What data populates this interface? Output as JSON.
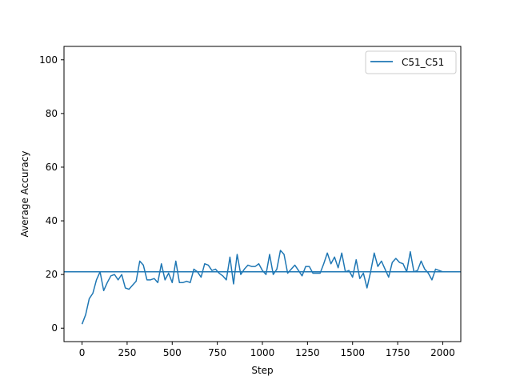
{
  "colors": {
    "series": "#1f77b4",
    "axis": "#000000",
    "background": "#ffffff"
  },
  "chart_data": {
    "type": "line",
    "title": "",
    "xlabel": "Step",
    "ylabel": "Average Accuracy",
    "xlim": [
      -100,
      2100
    ],
    "ylim": [
      -5,
      105
    ],
    "xticks": [
      0,
      250,
      500,
      750,
      1000,
      1250,
      1500,
      1750,
      2000
    ],
    "yticks": [
      0,
      20,
      40,
      60,
      80,
      100
    ],
    "grid": false,
    "legend": {
      "position": "top-right",
      "entries": [
        "C51_C51"
      ]
    },
    "hline": 21,
    "series": [
      {
        "name": "C51_C51",
        "x": [
          0,
          20,
          40,
          60,
          80,
          100,
          120,
          140,
          160,
          180,
          200,
          220,
          240,
          260,
          280,
          300,
          320,
          340,
          360,
          380,
          400,
          420,
          440,
          460,
          480,
          500,
          520,
          540,
          560,
          580,
          600,
          620,
          640,
          660,
          680,
          700,
          720,
          740,
          760,
          780,
          800,
          820,
          840,
          860,
          880,
          900,
          920,
          940,
          960,
          980,
          1000,
          1020,
          1040,
          1060,
          1080,
          1100,
          1120,
          1140,
          1160,
          1180,
          1200,
          1220,
          1240,
          1260,
          1280,
          1300,
          1320,
          1340,
          1360,
          1380,
          1400,
          1420,
          1440,
          1460,
          1480,
          1500,
          1520,
          1540,
          1560,
          1580,
          1600,
          1620,
          1640,
          1660,
          1680,
          1700,
          1720,
          1740,
          1760,
          1780,
          1800,
          1820,
          1840,
          1860,
          1880,
          1900,
          1920,
          1940,
          1960,
          1980,
          2000
        ],
        "values": [
          1.5,
          5,
          11,
          13,
          18,
          21,
          14,
          17,
          19.5,
          20,
          18,
          20,
          15,
          14.5,
          16,
          17.5,
          25,
          23.5,
          18,
          18,
          18.5,
          17,
          24,
          18,
          20.5,
          17,
          25,
          17,
          17,
          17.5,
          17,
          22,
          21,
          19,
          24,
          23.5,
          21.5,
          22,
          20.5,
          19.5,
          18,
          26.5,
          16.5,
          27.5,
          20,
          22,
          23.5,
          23,
          23,
          24,
          21.5,
          20,
          27.5,
          20,
          22,
          29,
          27.5,
          20.5,
          22,
          23.5,
          21.5,
          19.5,
          23,
          23,
          20.5,
          20.5,
          20.5,
          24,
          28,
          24,
          26.5,
          22.5,
          28,
          21,
          21.5,
          19,
          25.5,
          18.5,
          20.5,
          15,
          21,
          28,
          23,
          25,
          22,
          19,
          24.5,
          26,
          24.5,
          24,
          21,
          28.5,
          21,
          21.5,
          25,
          22,
          20.5,
          18,
          22,
          21.5,
          21
        ]
      }
    ]
  }
}
